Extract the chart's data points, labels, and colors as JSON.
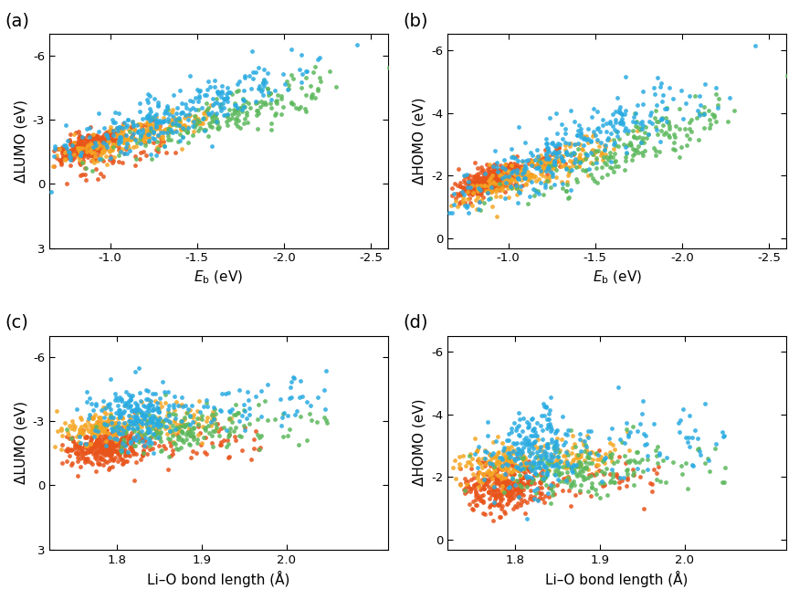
{
  "colors": [
    "#E8541A",
    "#F5A623",
    "#5CB85C",
    "#29ABE2"
  ],
  "panel_labels": [
    "(a)",
    "(b)",
    "(c)",
    "(d)"
  ],
  "xlabel_eb": "$E_\\mathrm{b}$ (eV)",
  "xlabel_lio": "Li–O bond length (Å)",
  "ylabels": [
    "ΔLUMO (eV)",
    "ΔHOMO (eV)",
    "ΔLUMO (eV)",
    "ΔHOMO (eV)"
  ],
  "xlim_top_min": -0.65,
  "xlim_top_max": -2.6,
  "ylim_a_min": 3,
  "ylim_a_max": -7,
  "ylim_b_min": 0.3,
  "ylim_b_max": -6.5,
  "xlim_cd_min": 1.72,
  "xlim_cd_max": 2.12,
  "ylim_cd_a_min": 3,
  "ylim_cd_a_max": -7,
  "ylim_cd_b_min": 0.3,
  "ylim_cd_b_max": -6.5,
  "marker_size": 12,
  "alpha": 0.85,
  "background_color": "#ffffff",
  "label_fontsize": 11,
  "panel_label_fontsize": 14,
  "tick_fontsize": 9.5,
  "xticks_top": [
    -1.0,
    -1.5,
    -2.0,
    -2.5
  ],
  "xtick_labels_top": [
    "-1.0",
    "-1.5",
    "-2.0",
    "-2.5"
  ],
  "yticks_a": [
    3,
    0,
    -3,
    -6
  ],
  "ytick_labels_a": [
    "3",
    "0",
    "-3",
    "-6"
  ],
  "yticks_b": [
    0,
    -2,
    -4,
    -6
  ],
  "ytick_labels_b": [
    "0",
    "-2",
    "-4",
    "-6"
  ],
  "xticks_cd": [
    1.8,
    1.9,
    2.0
  ],
  "xtick_labels_cd": [
    "1.8",
    "1.9",
    "2.0"
  ]
}
